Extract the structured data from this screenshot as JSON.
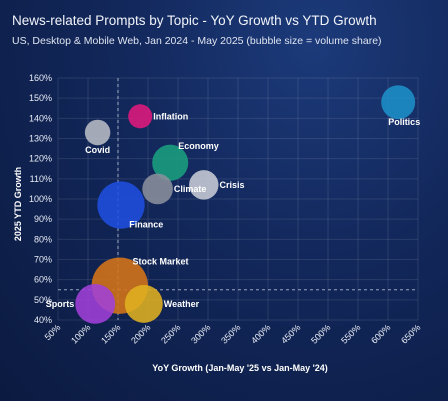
{
  "chart_data": {
    "type": "scatter",
    "title": "News-related Prompts by Topic - YoY Growth vs YTD Growth",
    "subtitle": "US, Desktop & Mobile Web, Jan 2024 - May 2025 (bubble size = volume share)",
    "xlabel": "YoY Growth (Jan-May '25 vs Jan-May '24)",
    "ylabel": "2025 YTD Growth",
    "xlim": [
      50,
      650
    ],
    "ylim": [
      40,
      160
    ],
    "x_ticks": [
      "50%",
      "100%",
      "150%",
      "200%",
      "250%",
      "300%",
      "350%",
      "400%",
      "450%",
      "500%",
      "550%",
      "600%",
      "650%"
    ],
    "y_ticks": [
      "40%",
      "50%",
      "60%",
      "70%",
      "80%",
      "90%",
      "100%",
      "110%",
      "120%",
      "130%",
      "140%",
      "150%",
      "160%"
    ],
    "grid": true,
    "reference_lines": {
      "x": 150,
      "y": 55
    },
    "points": [
      {
        "name": "Politics",
        "x": 617,
        "y": 148,
        "size": 3.2,
        "color": "#1e8fc8",
        "label_pos": "below"
      },
      {
        "name": "Inflation",
        "x": 187,
        "y": 141,
        "size": 1.6,
        "color": "#e0197d",
        "label_pos": "right"
      },
      {
        "name": "Covid",
        "x": 116,
        "y": 133,
        "size": 1.8,
        "color": "#b8bcc6",
        "label_pos": "below"
      },
      {
        "name": "Economy",
        "x": 237,
        "y": 118,
        "size": 3.6,
        "color": "#1a9e7e",
        "label_pos": "above-right"
      },
      {
        "name": "Crisis",
        "x": 293,
        "y": 107,
        "size": 2.4,
        "color": "#c8ccd6",
        "label_pos": "right"
      },
      {
        "name": "Climate",
        "x": 216,
        "y": 105,
        "size": 2.6,
        "color": "#8a909c",
        "label_pos": "right"
      },
      {
        "name": "Finance",
        "x": 155,
        "y": 97,
        "size": 6.2,
        "color": "#1f4fe0",
        "label_pos": "below-right"
      },
      {
        "name": "Stock Market",
        "x": 153,
        "y": 57,
        "size": 8.8,
        "color": "#d67418",
        "label_pos": "above-right"
      },
      {
        "name": "Sports",
        "x": 112,
        "y": 48,
        "size": 4.4,
        "color": "#a040d8",
        "label_pos": "left"
      },
      {
        "name": "Weather",
        "x": 193,
        "y": 48,
        "size": 4.0,
        "color": "#e0b020",
        "label_pos": "right"
      }
    ]
  }
}
